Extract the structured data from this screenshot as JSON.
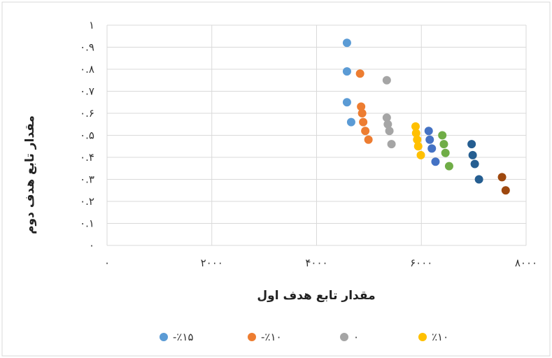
{
  "chart_data": {
    "type": "scatter",
    "xlabel": "مقدار تابع هدف اول",
    "ylabel": "مقدار تابع هدف دوم",
    "xlim": [
      0,
      8000
    ],
    "ylim": [
      0,
      1
    ],
    "x_ticks": [
      {
        "value": 0,
        "label": "۰"
      },
      {
        "value": 2000,
        "label": "۲۰۰۰"
      },
      {
        "value": 4000,
        "label": "۴۰۰۰"
      },
      {
        "value": 6000,
        "label": "۶۰۰۰"
      },
      {
        "value": 8000,
        "label": "۸۰۰۰"
      }
    ],
    "y_ticks": [
      {
        "value": 0,
        "label": "۰"
      },
      {
        "value": 0.1,
        "label": "۰.۱"
      },
      {
        "value": 0.2,
        "label": "۰.۲"
      },
      {
        "value": 0.3,
        "label": "۰.۳"
      },
      {
        "value": 0.4,
        "label": "۰.۴"
      },
      {
        "value": 0.5,
        "label": "۰.۵"
      },
      {
        "value": 0.6,
        "label": "۰.۶"
      },
      {
        "value": 0.7,
        "label": "۰.۷"
      },
      {
        "value": 0.8,
        "label": "۰.۸"
      },
      {
        "value": 0.9,
        "label": "۰.۹"
      },
      {
        "value": 1,
        "label": "۱"
      }
    ],
    "grid": "vertical and horizontal",
    "legend_position": "bottom",
    "series": [
      {
        "name": "-٪۱۵",
        "color": "#5B9BD5",
        "points": [
          {
            "x": 4580,
            "y": 0.92
          },
          {
            "x": 4580,
            "y": 0.79
          },
          {
            "x": 4580,
            "y": 0.65
          },
          {
            "x": 4660,
            "y": 0.56
          }
        ]
      },
      {
        "name": "-٪۱۰",
        "color": "#ED7D31",
        "points": [
          {
            "x": 4830,
            "y": 0.78
          },
          {
            "x": 4850,
            "y": 0.63
          },
          {
            "x": 4870,
            "y": 0.6
          },
          {
            "x": 4890,
            "y": 0.56
          },
          {
            "x": 4930,
            "y": 0.52
          },
          {
            "x": 4990,
            "y": 0.48
          }
        ]
      },
      {
        "name": "۰",
        "color": "#A5A5A5",
        "points": [
          {
            "x": 5340,
            "y": 0.75
          },
          {
            "x": 5340,
            "y": 0.58
          },
          {
            "x": 5360,
            "y": 0.55
          },
          {
            "x": 5390,
            "y": 0.52
          },
          {
            "x": 5430,
            "y": 0.46
          }
        ]
      },
      {
        "name": "٪۱۰",
        "color": "#FFC000",
        "points": [
          {
            "x": 5890,
            "y": 0.54
          },
          {
            "x": 5900,
            "y": 0.51
          },
          {
            "x": 5920,
            "y": 0.48
          },
          {
            "x": 5940,
            "y": 0.45
          },
          {
            "x": 5990,
            "y": 0.41
          }
        ]
      },
      {
        "name": "",
        "color": "#4472C4",
        "points": [
          {
            "x": 6140,
            "y": 0.52
          },
          {
            "x": 6160,
            "y": 0.48
          },
          {
            "x": 6200,
            "y": 0.44
          },
          {
            "x": 6270,
            "y": 0.38
          }
        ]
      },
      {
        "name": "",
        "color": "#70AD47",
        "points": [
          {
            "x": 6400,
            "y": 0.5
          },
          {
            "x": 6430,
            "y": 0.46
          },
          {
            "x": 6460,
            "y": 0.42
          },
          {
            "x": 6530,
            "y": 0.36
          }
        ]
      },
      {
        "name": "",
        "color": "#255E91",
        "points": [
          {
            "x": 6960,
            "y": 0.46
          },
          {
            "x": 6980,
            "y": 0.41
          },
          {
            "x": 7020,
            "y": 0.37
          },
          {
            "x": 7100,
            "y": 0.3
          }
        ]
      },
      {
        "name": "",
        "color": "#9E480E",
        "points": [
          {
            "x": 7540,
            "y": 0.31
          },
          {
            "x": 7610,
            "y": 0.25
          }
        ]
      }
    ]
  }
}
